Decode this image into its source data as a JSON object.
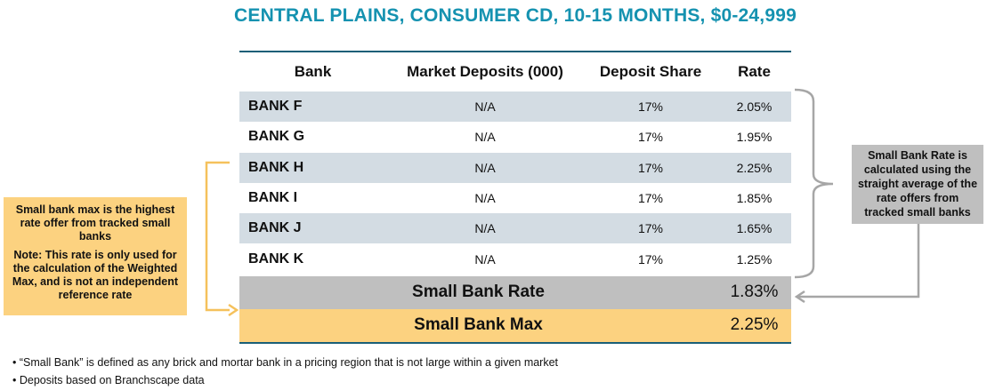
{
  "title": "CENTRAL PLAINS, CONSUMER CD, 10-15 MONTHS, $0-24,999",
  "table": {
    "headers": [
      "Bank",
      "Market Deposits (000)",
      "Deposit Share",
      "Rate"
    ],
    "rows": [
      {
        "bank": "BANK F",
        "deposits": "N/A",
        "share": "17%",
        "rate": "2.05%"
      },
      {
        "bank": "BANK G",
        "deposits": "N/A",
        "share": "17%",
        "rate": "1.95%"
      },
      {
        "bank": "BANK H",
        "deposits": "N/A",
        "share": "17%",
        "rate": "2.25%"
      },
      {
        "bank": "BANK I",
        "deposits": "N/A",
        "share": "17%",
        "rate": "1.85%"
      },
      {
        "bank": "BANK J",
        "deposits": "N/A",
        "share": "17%",
        "rate": "1.65%"
      },
      {
        "bank": "BANK K",
        "deposits": "N/A",
        "share": "17%",
        "rate": "1.25%"
      }
    ],
    "small_bank_rate": {
      "label": "Small Bank Rate",
      "value": "1.83%"
    },
    "small_bank_max": {
      "label": "Small Bank Max",
      "value": "2.25%"
    }
  },
  "callouts": {
    "left_main": "Small bank max is the highest rate offer from tracked small banks",
    "left_note": "Note: This rate is only used for the calculation of the Weighted Max, and is not an independent reference rate",
    "right": "Small Bank Rate is calculated using the straight average of the rate offers from tracked small banks"
  },
  "notes": [
    "“Small Bank” is defined as any brick and mortar bank in a pricing region that is not large within a given market",
    "Deposits based on Branchscape data"
  ],
  "colors": {
    "title": "#1592b0",
    "table_rule": "#1a5f78",
    "row_shade": "#d3dce3",
    "rate_row": "#bfbfbf",
    "max_row": "#fcd280",
    "arrow_yellow": "#f5c15c",
    "arrow_gray": "#a6a6a6"
  }
}
